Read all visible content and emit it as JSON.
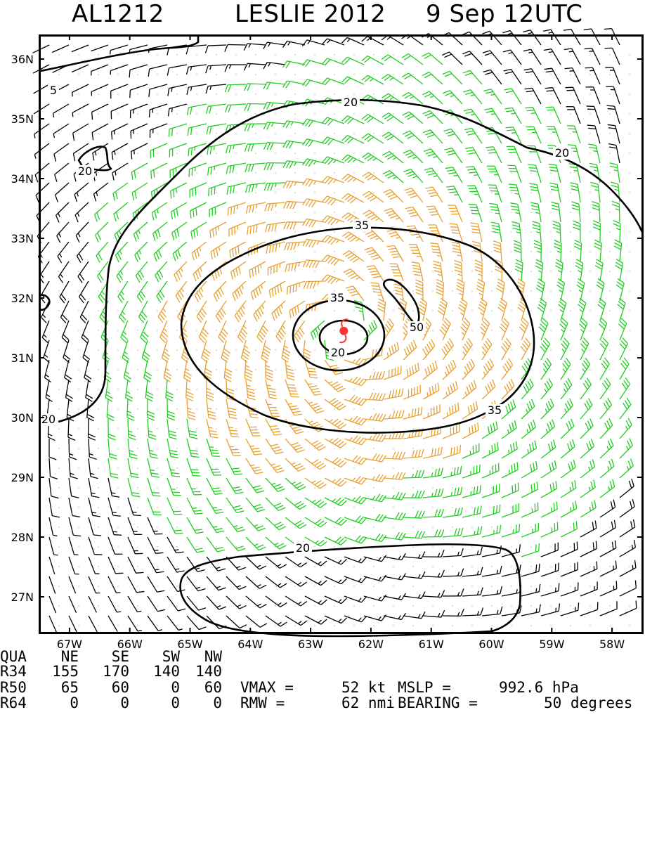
{
  "title": {
    "storm_id": "AL1212",
    "storm_name": "LESLIE 2012",
    "datetime": "9 Sep 12UTC"
  },
  "map": {
    "lon_range": [
      -67.5,
      -57.5
    ],
    "lat_range": [
      26.4,
      36.4
    ],
    "lat_ticks": [
      "36N",
      "35N",
      "34N",
      "33N",
      "32N",
      "31N",
      "30N",
      "29N",
      "28N",
      "27N"
    ],
    "lat_values": [
      36,
      35,
      34,
      33,
      32,
      31,
      30,
      29,
      28,
      27
    ],
    "lon_ticks": [
      "67W",
      "66W",
      "65W",
      "64W",
      "63W",
      "62W",
      "61W",
      "60W",
      "59W",
      "58W"
    ],
    "lon_values": [
      -67,
      -66,
      -65,
      -64,
      -63,
      -62,
      -61,
      -60,
      -59,
      -58
    ],
    "storm_center": {
      "lon": -62.45,
      "lat": 31.45
    },
    "storm_symbol_color": "#ff3333",
    "barb_colors": {
      "below_34kt": "#000000",
      "34_to_50kt": "#22cc22",
      "above_50kt": "#e8a030"
    },
    "contour_labels": {
      "c5": "5",
      "c20_north": "20",
      "c20_ne": "20",
      "c20_nw": "20",
      "c20_west": "20",
      "c20_south": "20",
      "c20_inner": "20",
      "c35_outer_top": "35",
      "c35_outer_right": "35",
      "c35_inner": "35",
      "c50": "50"
    }
  },
  "info": {
    "header": [
      "QUA",
      "NE",
      "SE",
      "SW",
      "NW"
    ],
    "rows": [
      {
        "label": "R34",
        "values": [
          "155",
          "170",
          "140",
          "140"
        ]
      },
      {
        "label": "R50",
        "values": [
          "65",
          "60",
          "0",
          "60"
        ]
      },
      {
        "label": "R64",
        "values": [
          "0",
          "0",
          "0",
          "0"
        ]
      }
    ],
    "vmax_label": "VMAX =",
    "vmax_value": "52 kt",
    "mslp_label": "MSLP =",
    "mslp_value": "992.6 hPa",
    "rmw_label": "RMW =",
    "rmw_value": "62 nmi",
    "bearing_label": "BEARING =",
    "bearing_value": "50 degrees"
  }
}
